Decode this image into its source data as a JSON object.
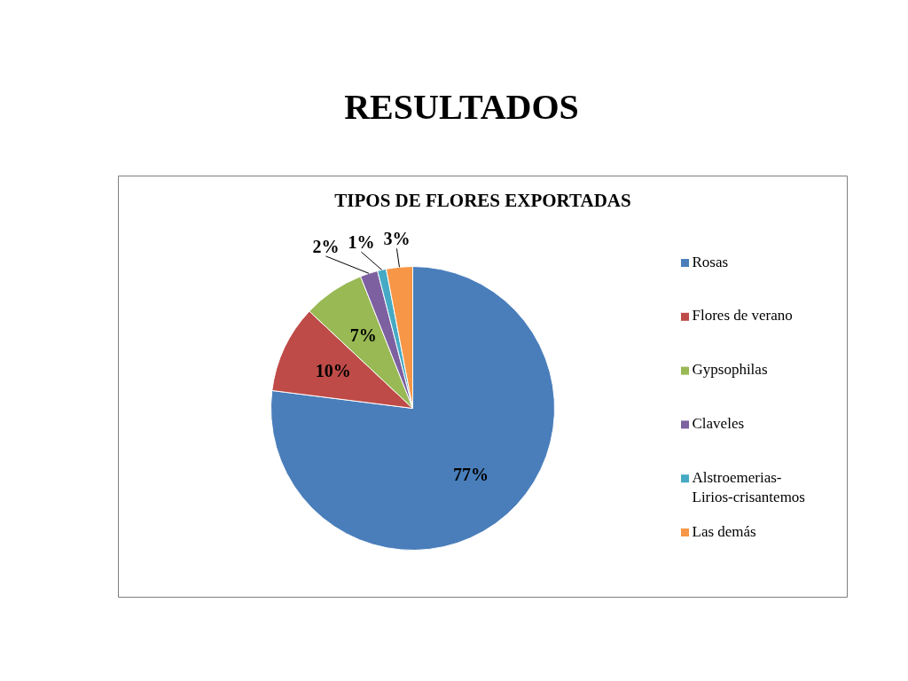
{
  "chart_data": {
    "type": "pie",
    "title": "RESULTADOS",
    "subtitle": "TIPOS DE FLORES EXPORTADAS",
    "categories": [
      "Rosas",
      "Flores de verano",
      "Gypsophilas",
      "Claveles",
      "Alstroemerias-Lirios-crisantemos",
      "Las demás"
    ],
    "values": [
      77,
      10,
      7,
      2,
      1,
      3
    ],
    "colors": [
      "#4a7ebb",
      "#be4b48",
      "#98b954",
      "#7d60a0",
      "#46aac5",
      "#f79646"
    ],
    "value_labels": [
      "77%",
      "10%",
      "7%",
      "2%",
      "1%",
      "3%"
    ],
    "legend": "right"
  }
}
